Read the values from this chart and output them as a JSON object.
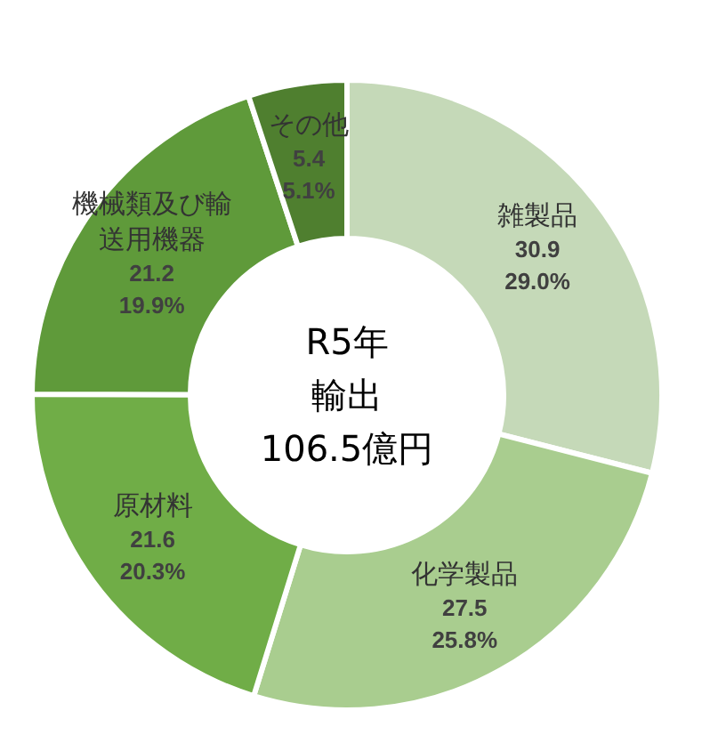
{
  "chart_data": {
    "type": "donut",
    "title": "R5年輸出",
    "subtitle": "106.5億円",
    "categories": [
      "雑製品",
      "化学製品",
      "原材料",
      "機械類及び輸送用機器",
      "その他"
    ],
    "values": [
      30.9,
      27.5,
      21.6,
      21.2,
      5.4
    ],
    "value_labels": [
      "30.9\n29.0%",
      "27.5\n25.8%",
      "21.6\n20.3%",
      "21.2\n19.9%",
      "5.4\n5.1%"
    ],
    "colors": [
      "#c5d9b8",
      "#a9cd8f",
      "#70ad47",
      "#5f9a3a",
      "#4f7f2f"
    ],
    "legend": false
  }
}
